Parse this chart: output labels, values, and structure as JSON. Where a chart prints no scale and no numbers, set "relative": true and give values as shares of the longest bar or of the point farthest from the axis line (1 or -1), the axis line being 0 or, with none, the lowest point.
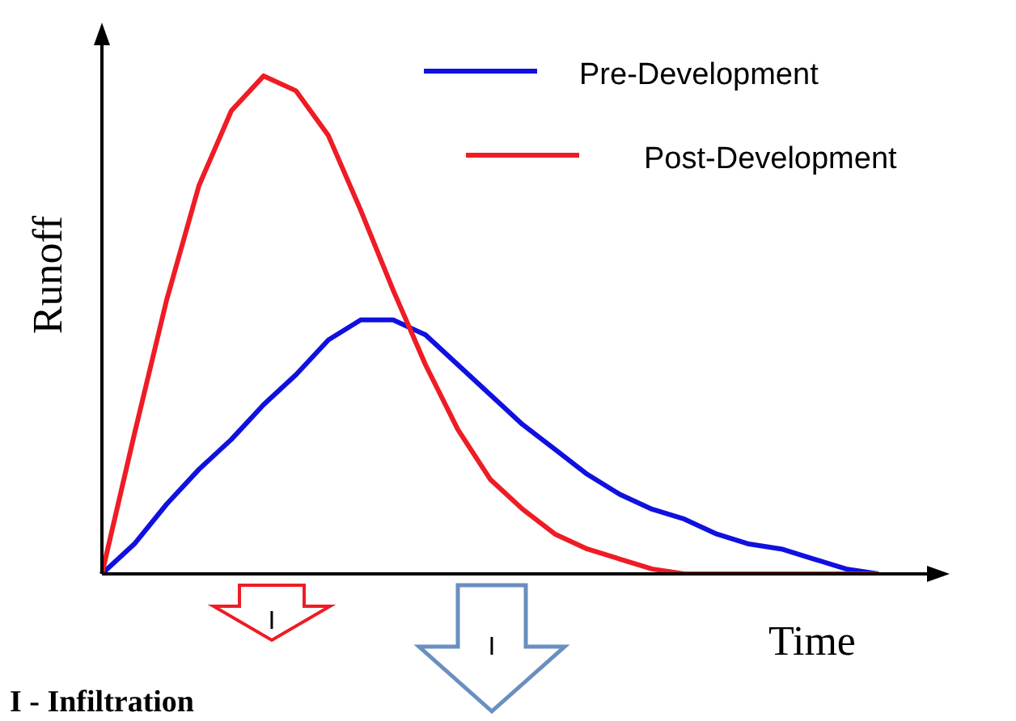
{
  "chart_data": {
    "type": "line",
    "relative": true,
    "xlabel": "Time",
    "ylabel": "Runoff",
    "legend": "top right",
    "marker": "none",
    "line_style": "solid",
    "categories": [
      null,
      null,
      null,
      null,
      null,
      null,
      null,
      null,
      null,
      null,
      null,
      null,
      null,
      null,
      null,
      null,
      null,
      null,
      null,
      null,
      null,
      null,
      null,
      null,
      null
    ],
    "series": [
      {
        "name": "Pre-Development",
        "color": "#1010e0",
        "values": [
          0,
          0.06,
          0.14,
          0.21,
          0.27,
          0.34,
          0.4,
          0.47,
          0.51,
          0.51,
          0.48,
          0.42,
          0.36,
          0.3,
          0.25,
          0.2,
          0.16,
          0.13,
          0.11,
          0.08,
          0.06,
          0.05,
          0.03,
          0.01,
          0
        ]
      },
      {
        "name": "Post-Development",
        "color": "#ee1c25",
        "values": [
          0,
          0.28,
          0.55,
          0.78,
          0.93,
          1,
          0.97,
          0.88,
          0.73,
          0.57,
          0.42,
          0.29,
          0.19,
          0.13,
          0.08,
          0.05,
          0.03,
          0.01,
          0,
          0,
          0,
          0,
          0,
          0,
          0
        ]
      }
    ],
    "annotations": [
      "I",
      "I",
      "I - Infiltration"
    ]
  }
}
